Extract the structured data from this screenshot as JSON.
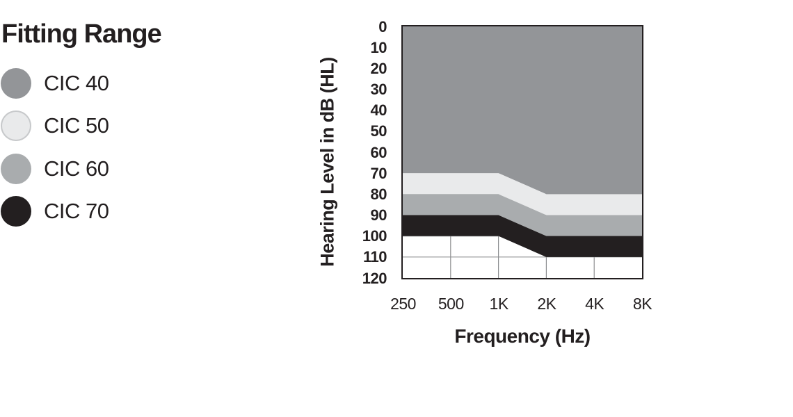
{
  "legend": {
    "title": "Fitting Range",
    "items": [
      {
        "label": "CIC 40",
        "color": "#939598"
      },
      {
        "label": "CIC 50",
        "color": "#e9eaeb",
        "ring": "#c7c9cb"
      },
      {
        "label": "CIC 60",
        "color": "#a9acae"
      },
      {
        "label": "CIC 70",
        "color": "#231f20"
      }
    ]
  },
  "chart_data": {
    "type": "area",
    "title": "Fitting Range",
    "xlabel": "Frequency (Hz)",
    "ylabel": "Hearing Level in dB (HL)",
    "x_categories": [
      "250",
      "500",
      "1K",
      "2K",
      "4K",
      "8K"
    ],
    "y_ticks": [
      0,
      10,
      20,
      30,
      40,
      50,
      60,
      70,
      80,
      90,
      100,
      110,
      120
    ],
    "ylim": [
      0,
      120
    ],
    "y_inverted": true,
    "legend_position": "top-left",
    "grid": {
      "on": true,
      "vertical_at": [
        "500",
        "1K",
        "2K",
        "4K"
      ],
      "horizontal_step": 10,
      "color": "#8f9193",
      "border_color": "#231f20"
    },
    "series": [
      {
        "name": "CIC 40",
        "color": "#939598",
        "upper_db": [
          0,
          0,
          0,
          0,
          0,
          0
        ],
        "lower_db": [
          70,
          70,
          70,
          80,
          80,
          80
        ]
      },
      {
        "name": "CIC 50",
        "color": "#e9eaeb",
        "upper_db": [
          70,
          70,
          70,
          80,
          80,
          80
        ],
        "lower_db": [
          80,
          80,
          80,
          90,
          90,
          90
        ]
      },
      {
        "name": "CIC 60",
        "color": "#a9acae",
        "upper_db": [
          80,
          80,
          80,
          90,
          90,
          90
        ],
        "lower_db": [
          90,
          90,
          90,
          100,
          100,
          100
        ]
      },
      {
        "name": "CIC 70",
        "color": "#231f20",
        "upper_db": [
          90,
          90,
          90,
          100,
          100,
          100
        ],
        "lower_db": [
          100,
          100,
          100,
          110,
          110,
          110
        ]
      }
    ]
  }
}
